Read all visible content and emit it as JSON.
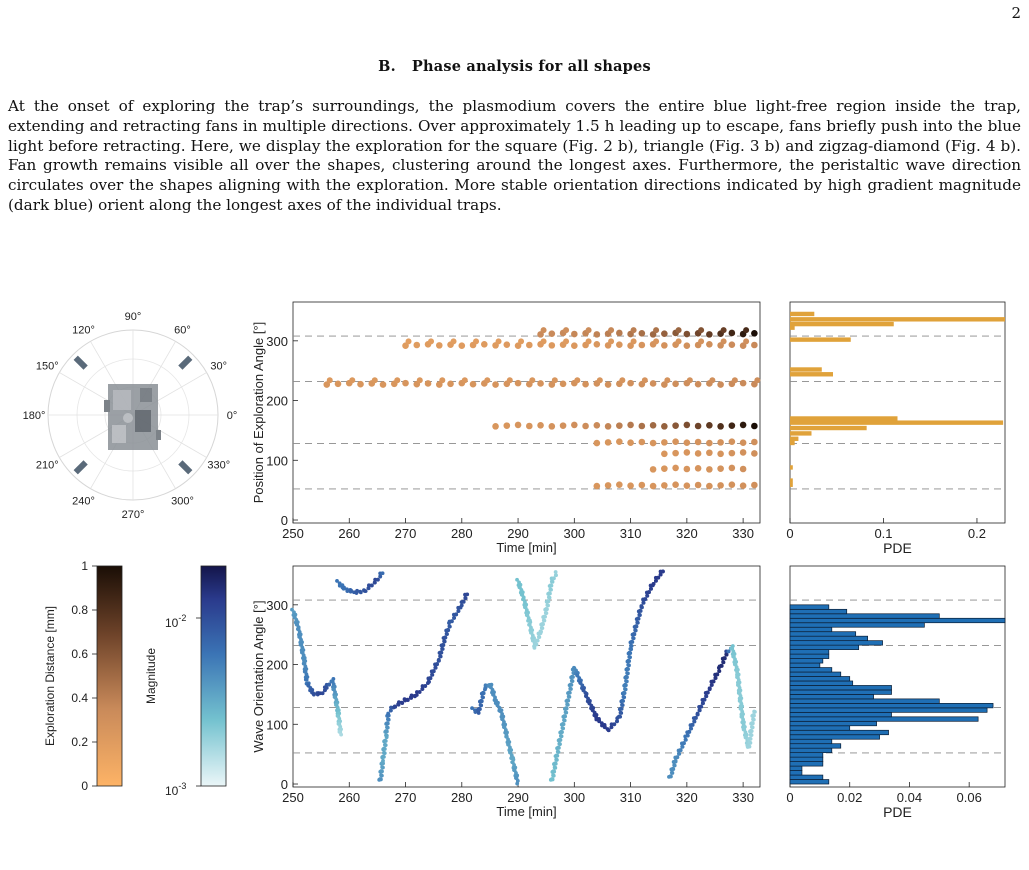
{
  "page_number": "2",
  "section": {
    "letter": "B.",
    "title": "Phase analysis for all shapes"
  },
  "paragraph": "At the onset of exploring the trap’s surroundings, the plasmodium covers the entire blue light-free region inside the trap, extending and retracting fans in multiple directions. Over approximately 1.5 h leading up to escape, fans briefly push into the blue light before retracting. Here, we display the exploration for the square (Fig. 2 b), triangle (Fig. 3 b) and zigzag-diamond (Fig. 4 b). Fan growth remains visible all over the shapes, clustering around the longest axes. Furthermore, the peristaltic wave direction circulates over the shapes aligning with the exploration. More stable orientation directions indicated by high gradient magnitude (dark blue) orient along the longest axes of the individual traps.",
  "polar": {
    "angle_labels": [
      "90°",
      "60°",
      "30°",
      "0°",
      "330°",
      "300°",
      "270°",
      "240°",
      "210°",
      "180°",
      "150°",
      "120°"
    ],
    "marker_angles_deg": [
      45,
      135,
      225,
      315
    ]
  },
  "colorbar_distance": {
    "label": "Exploration Distance [mm]",
    "ticks": [
      "0",
      "0.2",
      "0.4",
      "0.6",
      "0.8",
      "1"
    ],
    "colors": [
      "#fdb366",
      "#1a0e06"
    ]
  },
  "colorbar_magnitude": {
    "label": "Magnitude",
    "tick_top_base": "10",
    "tick_top_exp": "-2",
    "tick_bottom_base": "10",
    "tick_bottom_exp": "-3",
    "colors": [
      "#ebf6f8",
      "#14154a"
    ]
  },
  "chart_data": [
    {
      "type": "scatter",
      "xlabel": "Time [min]",
      "ylabel": "Position of Exploration Angle [°]",
      "xlim": [
        250,
        333
      ],
      "ylim": [
        -5,
        365
      ],
      "xticks": [
        "250",
        "260",
        "270",
        "280",
        "290",
        "300",
        "310",
        "320",
        "330"
      ],
      "yticks": [
        "0",
        "100",
        "200",
        "300"
      ],
      "reference_lines_deg": [
        52,
        128,
        232,
        308
      ],
      "color_scale": "Exploration Distance [mm]",
      "series": [
        {
          "x_start": 256,
          "x_end": 332,
          "step": 2,
          "y": 228,
          "d_start": 0.25,
          "d_end": 0.35
        },
        {
          "x_start": 270,
          "x_end": 332,
          "step": 2,
          "y": 293,
          "d_start": 0.2,
          "d_end": 0.35
        },
        {
          "x_start": 294,
          "x_end": 332,
          "step": 2,
          "y": 312,
          "d_start": 0.35,
          "d_end": 1.0
        },
        {
          "x_start": 286,
          "x_end": 332,
          "step": 2,
          "y": 158,
          "d_start": 0.25,
          "d_end": 1.0
        },
        {
          "x_start": 304,
          "x_end": 332,
          "step": 2,
          "y": 130,
          "d_start": 0.25,
          "d_end": 0.3
        },
        {
          "x_start": 316,
          "x_end": 332,
          "step": 2,
          "y": 112,
          "d_start": 0.25,
          "d_end": 0.3
        },
        {
          "x_start": 314,
          "x_end": 330,
          "step": 2,
          "y": 86,
          "d_start": 0.25,
          "d_end": 0.3
        },
        {
          "x_start": 304,
          "x_end": 332,
          "step": 2,
          "y": 58,
          "d_start": 0.25,
          "d_end": 0.3
        }
      ]
    },
    {
      "type": "bar",
      "orientation": "horizontal",
      "xlabel": "PDE",
      "xlim": [
        0,
        0.23
      ],
      "xticks": [
        "0",
        "0.1",
        "0.2"
      ],
      "ylim": [
        -5,
        365
      ],
      "reference_lines_deg": [
        52,
        128,
        232,
        308
      ],
      "bars": [
        {
          "y": 336,
          "value": 0.23
        },
        {
          "y": 328,
          "value": 0.111
        },
        {
          "y": 322,
          "value": 0.005
        },
        {
          "y": 345,
          "value": 0.026
        },
        {
          "y": 302,
          "value": 0.065
        },
        {
          "y": 252,
          "value": 0.034
        },
        {
          "y": 244,
          "value": 0.046
        },
        {
          "y": 170,
          "value": 0.115
        },
        {
          "y": 163,
          "value": 0.228
        },
        {
          "y": 154,
          "value": 0.082
        },
        {
          "y": 145,
          "value": 0.023
        },
        {
          "y": 136,
          "value": 0.009
        },
        {
          "y": 129,
          "value": 0.005
        },
        {
          "y": 88,
          "value": 0.003
        },
        {
          "y": 66,
          "value": 0.003
        },
        {
          "y": 59,
          "value": 0.003
        }
      ]
    },
    {
      "type": "scatter",
      "xlabel": "Time [min]",
      "ylabel": "Wave Orientation Angle [°]",
      "xlim": [
        250,
        333
      ],
      "ylim": [
        -5,
        365
      ],
      "xticks": [
        "250",
        "260",
        "270",
        "280",
        "290",
        "300",
        "310",
        "320",
        "330"
      ],
      "yticks": [
        "0",
        "100",
        "200",
        "300"
      ],
      "reference_lines_deg": [
        52,
        128,
        232,
        308
      ],
      "color_scale": "Magnitude",
      "series": [
        {
          "points": [
            [
              250,
              290,
              0.45
            ],
            [
              251,
              260,
              0.5
            ],
            [
              252,
              205,
              0.5
            ],
            [
              252.5,
              170,
              0.6
            ],
            [
              253.5,
              152,
              0.75
            ],
            [
              255,
              150,
              0.8
            ],
            [
              256,
              162,
              0.75
            ],
            [
              257,
              175,
              0.6
            ],
            [
              258,
              120,
              0.3
            ],
            [
              258.5,
              80,
              0.15
            ]
          ]
        },
        {
          "points": [
            [
              258,
              338,
              0.6
            ],
            [
              259,
              328,
              0.6
            ],
            [
              261,
              320,
              0.7
            ],
            [
              263,
              325,
              0.75
            ],
            [
              265,
              342,
              0.8
            ],
            [
              266,
              355,
              0.6
            ]
          ]
        },
        {
          "points": [
            [
              265.5,
              5,
              0.5
            ],
            [
              266,
              40,
              0.4
            ],
            [
              266.5,
              80,
              0.4
            ],
            [
              267,
              120,
              0.6
            ],
            [
              268,
              130,
              0.8
            ],
            [
              270,
              140,
              0.85
            ],
            [
              272,
              150,
              0.85
            ],
            [
              274,
              170,
              0.8
            ],
            [
              276,
              210,
              0.75
            ],
            [
              277,
              245,
              0.75
            ],
            [
              278,
              270,
              0.7
            ],
            [
              280,
              300,
              0.75
            ],
            [
              281,
              320,
              0.8
            ]
          ]
        },
        {
          "points": [
            [
              282,
              125,
              0.6
            ],
            [
              283,
              120,
              0.7
            ],
            [
              284,
              160,
              0.6
            ],
            [
              285,
              168,
              0.5
            ],
            [
              286,
              140,
              0.5
            ],
            [
              287,
              120,
              0.5
            ],
            [
              288,
              80,
              0.45
            ],
            [
              289,
              40,
              0.4
            ],
            [
              290,
              0,
              0.5
            ]
          ]
        },
        {
          "points": [
            [
              290,
              340,
              0.3
            ],
            [
              291,
              310,
              0.3
            ],
            [
              292,
              270,
              0.25
            ],
            [
              293,
              230,
              0.2
            ],
            [
              294,
              255,
              0.2
            ],
            [
              295,
              290,
              0.2
            ],
            [
              296,
              340,
              0.25
            ],
            [
              297,
              355,
              0.2
            ]
          ]
        },
        {
          "points": [
            [
              296,
              5,
              0.3
            ],
            [
              300,
              195,
              0.5
            ],
            [
              302,
              150,
              0.75
            ],
            [
              304,
              110,
              0.85
            ],
            [
              306,
              90,
              0.85
            ],
            [
              308,
              110,
              0.75
            ],
            [
              309,
              160,
              0.55
            ],
            [
              310,
              230,
              0.6
            ],
            [
              312,
              300,
              0.75
            ],
            [
              314,
              335,
              0.85
            ],
            [
              316,
              360,
              0.85
            ]
          ]
        },
        {
          "points": [
            [
              317,
              10,
              0.5
            ],
            [
              318,
              40,
              0.5
            ],
            [
              320,
              80,
              0.6
            ],
            [
              322,
              120,
              0.75
            ],
            [
              324,
              160,
              0.85
            ],
            [
              326,
              195,
              0.9
            ],
            [
              327,
              218,
              0.9
            ],
            [
              328,
              230,
              0.3
            ],
            [
              329,
              185,
              0.25
            ],
            [
              330,
              100,
              0.25
            ],
            [
              331,
              60,
              0.2
            ],
            [
              332,
              125,
              0.2
            ]
          ]
        }
      ]
    },
    {
      "type": "bar",
      "orientation": "horizontal",
      "xlabel": "PDE",
      "xlim": [
        0,
        0.072
      ],
      "xticks": [
        "0",
        "0.02",
        "0.04",
        "0.06"
      ],
      "ylim": [
        -5,
        365
      ],
      "reference_lines_deg": [
        52,
        128,
        232,
        308
      ],
      "bin_width_deg": 7.5,
      "bin_start_deg": 0,
      "values": [
        0.013,
        0.011,
        0.004,
        0.004,
        0.011,
        0.011,
        0.011,
        0.014,
        0.017,
        0.014,
        0.03,
        0.033,
        0.02,
        0.029,
        0.063,
        0.034,
        0.066,
        0.068,
        0.05,
        0.028,
        0.034,
        0.034,
        0.021,
        0.02,
        0.017,
        0.014,
        0.01,
        0.011,
        0.013,
        0.013,
        0.023,
        0.031,
        0.026,
        0.022,
        0.014,
        0.045,
        0.072,
        0.05,
        0.019,
        0.013
      ]
    }
  ]
}
